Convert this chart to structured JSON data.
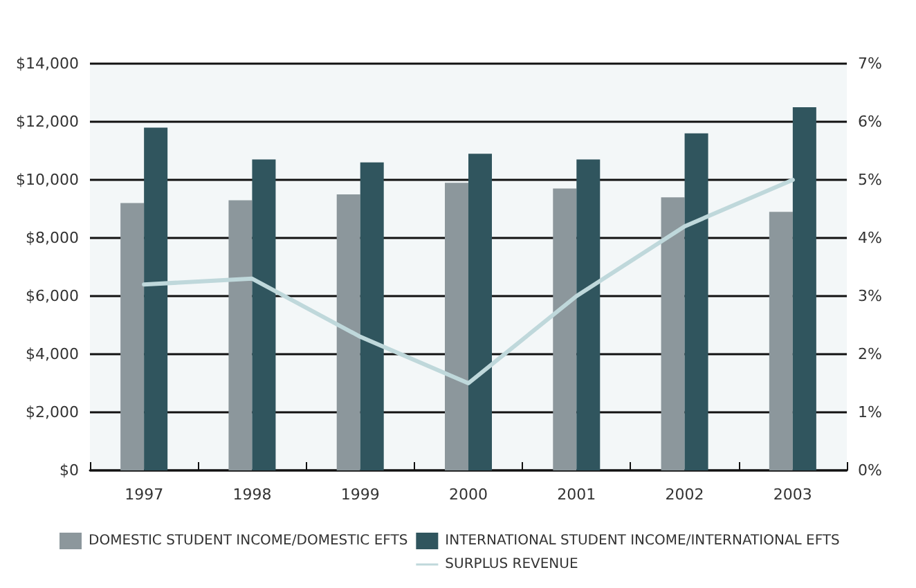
{
  "chart_data": {
    "type": "bar",
    "categories": [
      "1997",
      "1998",
      "1999",
      "2000",
      "2001",
      "2002",
      "2003"
    ],
    "series": [
      {
        "name": "DOMESTIC STUDENT INCOME/DOMESTIC EFTS",
        "color": "#8c979c",
        "values": [
          9200,
          9300,
          9500,
          9900,
          9700,
          9400,
          8900
        ]
      },
      {
        "name": "INTERNATIONAL STUDENT INCOME/INTERNATIONAL EFTS",
        "color": "#30555e",
        "values": [
          11800,
          10700,
          10600,
          10900,
          10700,
          11600,
          12500
        ]
      },
      {
        "name": "SURPLUS REVENUE",
        "type": "line",
        "axis": "y2",
        "color": "#bfd8db",
        "values": [
          3.2,
          3.3,
          2.3,
          1.5,
          3.0,
          4.2,
          5.0
        ]
      }
    ],
    "ylim": [
      0,
      14000
    ],
    "yticks": [
      {
        "value": 0,
        "label": "$0"
      },
      {
        "value": 2000,
        "label": "$2,000"
      },
      {
        "value": 4000,
        "label": "$4,000"
      },
      {
        "value": 6000,
        "label": "$6,000"
      },
      {
        "value": 8000,
        "label": "$8,000"
      },
      {
        "value": 10000,
        "label": "$10,000"
      },
      {
        "value": 12000,
        "label": "$12,000"
      },
      {
        "value": 14000,
        "label": "$14,000"
      }
    ],
    "y2lim": [
      0,
      7
    ],
    "y2ticks": [
      {
        "value": 0,
        "label": "0%"
      },
      {
        "value": 1,
        "label": "1%"
      },
      {
        "value": 2,
        "label": "2%"
      },
      {
        "value": 3,
        "label": "3%"
      },
      {
        "value": 4,
        "label": "4%"
      },
      {
        "value": 5,
        "label": "5%"
      },
      {
        "value": 6,
        "label": "6%"
      },
      {
        "value": 7,
        "label": "7%"
      }
    ],
    "grid": "y",
    "legend": "bottom left",
    "marker": "none"
  }
}
